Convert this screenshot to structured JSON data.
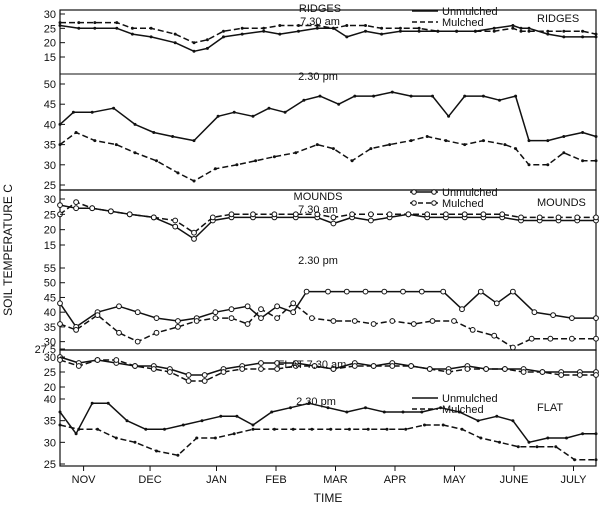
{
  "chart_data": {
    "type": "line",
    "ylabel": "SOIL TEMPERATURE C",
    "xlabel": "TIME",
    "months": [
      "NOV",
      "DEC",
      "JAN",
      "FEB",
      "MAR",
      "APR",
      "MAY",
      "JUNE",
      "JULY"
    ],
    "x_domain": [
      0,
      100
    ],
    "month_positions": [
      4.4,
      16.8,
      29.2,
      40.3,
      51.4,
      62.5,
      73.6,
      84.7,
      95.8
    ],
    "legend_labels": [
      "Unmulched",
      "Mulched"
    ],
    "treatments": [
      {
        "label": "RIDGES",
        "title": "RIDGES"
      },
      {
        "label": "MOUNDS",
        "title": "MOUNDS"
      },
      {
        "label": "FLAT",
        "title": "FLAT"
      }
    ],
    "panels": [
      {
        "title": "7.30 am",
        "ylim": [
          15,
          30
        ],
        "yticks": [
          15,
          20,
          25,
          30
        ],
        "yticklabels": [
          "15",
          "20",
          "25",
          "30"
        ],
        "markers": false,
        "series": [
          {
            "name": "Unmulched",
            "style": "solid",
            "x": [
              0.0,
              3.5,
              6.5,
              10.6,
              13.5,
              17.0,
              21.5,
              25.0,
              27.5,
              30.5,
              34.0,
              38.0,
              41.0,
              44.5,
              48.0,
              51.0,
              53.5,
              57.0,
              60.0,
              63.5,
              67.0,
              70.5,
              74.0,
              77.5,
              81.0,
              84.5,
              86.0,
              87.5,
              91.0,
              94.0,
              97.5,
              100.0
            ],
            "y": [
              26,
              25,
              25,
              25,
              23,
              22,
              20,
              17,
              18,
              22,
              23,
              24,
              23,
              24,
              25,
              25,
              22,
              24,
              23,
              24,
              24,
              24,
              24,
              24,
              25,
              26,
              25,
              25,
              23,
              22,
              22,
              22
            ]
          },
          {
            "name": "Mulched",
            "style": "dashed",
            "x": [
              0.0,
              3.5,
              6.5,
              10.6,
              13.5,
              17.0,
              21.5,
              25.0,
              27.5,
              30.5,
              34.0,
              38.0,
              41.0,
              44.5,
              48.0,
              51.0,
              53.5,
              57.0,
              60.0,
              63.5,
              67.0,
              70.5,
              74.0,
              77.5,
              81.0,
              84.5,
              86.0,
              87.5,
              91.0,
              94.0,
              97.5,
              100.0
            ],
            "y": [
              27,
              27,
              27,
              27,
              25,
              25,
              23,
              20,
              21,
              24,
              25,
              25,
              26,
              26,
              26,
              25,
              26,
              26,
              25,
              25,
              25,
              24,
              24,
              24,
              24,
              25,
              24,
              24,
              24,
              24,
              24,
              23
            ]
          }
        ]
      },
      {
        "title": "2.30 pm",
        "ylim": [
          25,
          50
        ],
        "yticks": [
          25,
          30,
          35,
          40,
          45,
          50
        ],
        "yticklabels": [
          "25",
          "30",
          "35",
          "40",
          "45",
          "50"
        ],
        "markers": false,
        "series": [
          {
            "name": "Unmulched",
            "style": "solid",
            "x": [
              0.0,
              2.5,
              6.0,
              10.0,
              14.0,
              17.5,
              21.0,
              25.0,
              29.5,
              32.5,
              36.0,
              39.0,
              42.0,
              45.5,
              48.5,
              52.0,
              55.0,
              58.5,
              62.0,
              65.5,
              69.5,
              72.5,
              75.5,
              79.0,
              82.0,
              85.0,
              87.5,
              91.0,
              94.0,
              97.5,
              100.0
            ],
            "y": [
              40,
              43,
              43,
              44,
              40,
              38,
              37,
              36,
              42,
              43,
              42,
              44,
              43,
              46,
              47,
              45,
              47,
              47,
              48,
              47,
              47,
              42,
              47,
              47,
              46,
              47,
              36,
              36,
              37,
              38,
              37
            ]
          },
          {
            "name": "Mulched",
            "style": "dashed",
            "x": [
              0.0,
              3.0,
              6.5,
              10.5,
              14.0,
              18.0,
              22.0,
              25.0,
              29.0,
              33.0,
              36.5,
              40.0,
              44.0,
              48.0,
              51.0,
              54.5,
              58.0,
              61.5,
              65.5,
              68.5,
              72.0,
              75.5,
              79.0,
              83.0,
              85.0,
              87.5,
              91.0,
              94.0,
              97.5,
              100.0
            ],
            "y": [
              35,
              38,
              36,
              35,
              33,
              31,
              28,
              26,
              29,
              30,
              31,
              32,
              33,
              35,
              34,
              31,
              34,
              35,
              36,
              37,
              36,
              35,
              36,
              35,
              34,
              30,
              30,
              33,
              31,
              31
            ]
          }
        ]
      },
      {
        "title": "7.30 am",
        "ylim": [
          15,
          30
        ],
        "yticks": [
          15,
          20,
          25,
          30
        ],
        "yticklabels": [
          "15",
          "20",
          "25",
          "30"
        ],
        "markers": true,
        "series": [
          {
            "name": "Unmulched",
            "style": "solid",
            "x": [
              0.0,
              3.0,
              6.0,
              9.5,
              13.0,
              17.5,
              21.5,
              25.0,
              28.5,
              32.0,
              36.0,
              40.0,
              44.0,
              48.0,
              51.0,
              54.5,
              58.0,
              61.5,
              65.0,
              68.5,
              72.0,
              75.5,
              79.0,
              82.5,
              86.0,
              89.5,
              93.0,
              96.5,
              100.0
            ],
            "y": [
              28,
              27,
              27,
              26,
              25,
              24,
              21,
              17,
              23,
              24,
              24,
              24,
              24,
              24,
              22,
              24,
              23,
              24,
              25,
              24,
              24,
              24,
              24,
              24,
              23,
              23,
              23,
              23,
              23
            ]
          },
          {
            "name": "Mulched",
            "style": "dashed",
            "x": [
              0.0,
              3.0,
              6.0,
              9.5,
              13.0,
              17.5,
              21.5,
              25.0,
              28.5,
              32.0,
              36.0,
              40.0,
              44.0,
              48.0,
              51.0,
              54.5,
              58.0,
              61.5,
              65.0,
              68.5,
              72.0,
              75.5,
              79.0,
              82.5,
              86.0,
              89.5,
              93.0,
              96.5,
              100.0
            ],
            "y": [
              25,
              29,
              27,
              26,
              25,
              24,
              23,
              19,
              24,
              25,
              25,
              25,
              25,
              25,
              24,
              25,
              25,
              25,
              25,
              25,
              25,
              25,
              25,
              25,
              24,
              24,
              24,
              24,
              24
            ]
          }
        ]
      },
      {
        "title": "2.30 pm",
        "ylim": [
          27.5,
          55
        ],
        "yticks": [
          27.5,
          30,
          35,
          40,
          45,
          50,
          55
        ],
        "yticklabels": [
          "27.5",
          "30",
          "35",
          "40",
          "45",
          "50",
          "55"
        ],
        "markers": true,
        "series": [
          {
            "name": "Unmulched",
            "style": "solid",
            "x": [
              0.0,
              3.0,
              7.0,
              11.0,
              14.5,
              18.0,
              22.0,
              25.5,
              29.0,
              32.0,
              35.0,
              37.5,
              40.5,
              43.5,
              46.0,
              50.0,
              53.5,
              57.0,
              60.5,
              64.0,
              67.5,
              71.5,
              75.0,
              78.5,
              81.5,
              84.5,
              88.5,
              92.0,
              95.5,
              100.0
            ],
            "y": [
              43,
              35,
              40,
              42,
              40,
              38,
              37,
              38,
              40,
              41,
              42,
              38,
              42,
              40,
              47,
              47,
              47,
              47,
              47,
              47,
              47,
              47,
              41,
              47,
              43,
              47,
              40,
              39,
              38,
              38
            ]
          },
          {
            "name": "Mulched",
            "style": "dashed",
            "x": [
              0.0,
              3.0,
              7.0,
              11.0,
              14.5,
              18.0,
              22.0,
              25.5,
              29.0,
              32.0,
              35.0,
              37.5,
              40.5,
              43.5,
              47.0,
              51.0,
              55.0,
              58.5,
              62.0,
              66.0,
              69.5,
              73.5,
              77.0,
              81.0,
              84.5,
              88.0,
              91.5,
              95.5,
              100.0
            ],
            "y": [
              36,
              34,
              39,
              33,
              30,
              33,
              35,
              37,
              38,
              38,
              36,
              41,
              38,
              43,
              38,
              37,
              37,
              36,
              37,
              36,
              37,
              37,
              34,
              32,
              28,
              31,
              31,
              31,
              31
            ]
          }
        ]
      },
      {
        "title": "FLAT 7.30 am",
        "ylim": [
          20,
          30
        ],
        "yticks": [
          20,
          25,
          30
        ],
        "yticklabels": [
          "20",
          "25",
          "30"
        ],
        "markers": true,
        "series": [
          {
            "name": "Unmulched",
            "style": "solid",
            "x": [
              0.0,
              3.5,
              7.0,
              10.5,
              14.0,
              17.5,
              20.5,
              24.0,
              27.0,
              30.5,
              34.0,
              37.5,
              40.5,
              44.0,
              47.5,
              51.0,
              55.0,
              58.5,
              62.0,
              65.5,
              69.0,
              72.5,
              76.0,
              79.5,
              83.0,
              86.5,
              90.0,
              93.5,
              97.0,
              100.0
            ],
            "y": [
              30,
              28,
              29,
              28,
              27,
              27,
              26,
              24,
              24,
              26,
              27,
              28,
              28,
              28,
              27,
              26,
              28,
              27,
              28,
              27,
              26,
              26,
              27,
              26,
              26,
              26,
              25,
              25,
              25,
              25
            ]
          },
          {
            "name": "Mulched",
            "style": "dashed",
            "x": [
              0.0,
              3.5,
              7.0,
              10.5,
              14.0,
              17.5,
              20.5,
              24.0,
              27.0,
              30.5,
              34.0,
              37.5,
              40.5,
              44.0,
              47.5,
              51.0,
              55.0,
              58.5,
              62.0,
              65.5,
              69.0,
              72.5,
              76.0,
              79.5,
              83.0,
              86.5,
              90.0,
              93.5,
              97.0,
              100.0
            ],
            "y": [
              29,
              27,
              29,
              29,
              27,
              26,
              25,
              22,
              22,
              25,
              26,
              26,
              26,
              27,
              27,
              26,
              27,
              27,
              27,
              27,
              26,
              25,
              26,
              26,
              26,
              25,
              25,
              24,
              24,
              24
            ]
          }
        ]
      },
      {
        "title": "2.30 pm",
        "ylim": [
          25,
          40
        ],
        "yticks": [
          25,
          30,
          35,
          40
        ],
        "yticklabels": [
          "25",
          "30",
          "35",
          "40"
        ],
        "markers": false,
        "series": [
          {
            "name": "Unmulched",
            "style": "solid",
            "x": [
              0.0,
              3.0,
              6.0,
              9.0,
              12.5,
              16.0,
              19.5,
              23.0,
              26.5,
              30.0,
              33.0,
              36.0,
              39.5,
              43.0,
              46.5,
              50.0,
              53.5,
              57.0,
              60.5,
              64.0,
              67.5,
              71.0,
              74.5,
              78.0,
              81.5,
              84.5,
              87.5,
              91.0,
              94.5,
              97.5,
              100.0
            ],
            "y": [
              37,
              32,
              39,
              39,
              35,
              33,
              33,
              34,
              35,
              36,
              36,
              34,
              37,
              38,
              39,
              38,
              37,
              38,
              37,
              37,
              37,
              38,
              37,
              35,
              36,
              35,
              30,
              31,
              31,
              32,
              32
            ]
          },
          {
            "name": "Mulched",
            "style": "dashed",
            "x": [
              0.0,
              3.5,
              7.0,
              10.5,
              14.0,
              18.0,
              22.0,
              25.5,
              29.0,
              32.5,
              36.0,
              40.0,
              43.5,
              47.0,
              50.5,
              54.0,
              57.5,
              61.0,
              64.5,
              68.0,
              71.5,
              75.0,
              78.5,
              82.0,
              85.5,
              89.0,
              92.5,
              96.0,
              100.0
            ],
            "y": [
              34,
              33,
              33,
              31,
              30,
              28,
              27,
              31,
              31,
              32,
              33,
              33,
              33,
              33,
              33,
              33,
              33,
              33,
              33,
              34,
              34,
              33,
              31,
              30,
              29,
              29,
              29,
              26,
              26
            ]
          }
        ]
      }
    ]
  }
}
